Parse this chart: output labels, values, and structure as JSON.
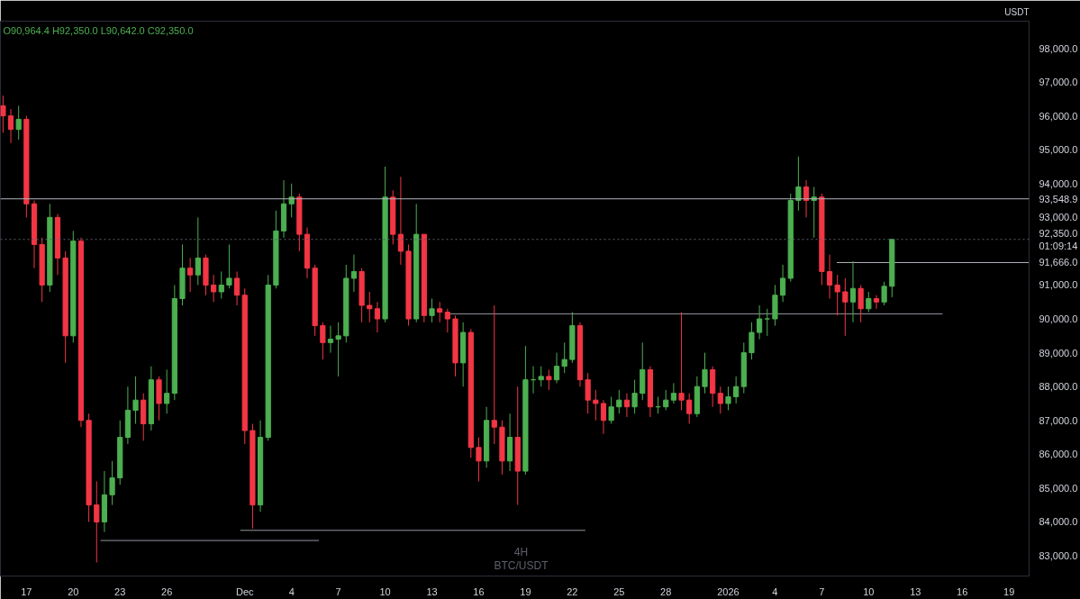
{
  "chart_data": {
    "type": "candlestick",
    "x": [
      "2025-11-15T12:00",
      "2025-11-16T00:00",
      "2025-11-16T12:00",
      "2025-11-17T00:00",
      "2025-11-17T12:00",
      "2025-11-18T00:00",
      "2025-11-18T12:00",
      "2025-11-19T00:00",
      "2025-11-19T12:00",
      "2025-11-20T00:00",
      "2025-11-20T12:00",
      "2025-11-21T00:00",
      "2025-11-21T12:00",
      "2025-11-22T00:00",
      "2025-11-22T12:00",
      "2025-11-23T00:00",
      "2025-11-23T12:00",
      "2025-11-24T00:00",
      "2025-11-24T12:00",
      "2025-11-25T00:00",
      "2025-11-25T12:00",
      "2025-11-26T00:00",
      "2025-11-26T12:00",
      "2025-11-27T00:00",
      "2025-11-27T12:00",
      "2025-11-28T00:00",
      "2025-11-28T12:00",
      "2025-11-29T00:00",
      "2025-11-29T12:00",
      "2025-11-30T00:00",
      "2025-11-30T12:00",
      "2025-12-01T00:00",
      "2025-12-01T12:00",
      "2025-12-02T00:00",
      "2025-12-02T12:00",
      "2025-12-03T00:00",
      "2025-12-03T12:00",
      "2025-12-04T00:00",
      "2025-12-04T12:00",
      "2025-12-05T00:00",
      "2025-12-05T12:00",
      "2025-12-06T00:00",
      "2025-12-06T12:00",
      "2025-12-07T00:00",
      "2025-12-07T12:00",
      "2025-12-08T00:00",
      "2025-12-08T12:00",
      "2025-12-09T00:00",
      "2025-12-09T12:00",
      "2025-12-10T00:00",
      "2025-12-10T12:00",
      "2025-12-11T00:00",
      "2025-12-11T12:00",
      "2025-12-12T00:00",
      "2025-12-12T12:00",
      "2025-12-13T00:00",
      "2025-12-13T12:00",
      "2025-12-14T00:00",
      "2025-12-14T12:00",
      "2025-12-15T00:00",
      "2025-12-15T12:00",
      "2025-12-16T00:00",
      "2025-12-16T12:00",
      "2025-12-17T00:00",
      "2025-12-17T12:00",
      "2025-12-18T00:00",
      "2025-12-18T12:00",
      "2025-12-19T00:00",
      "2025-12-19T12:00",
      "2025-12-20T00:00",
      "2025-12-20T12:00",
      "2025-12-21T00:00",
      "2025-12-21T12:00",
      "2025-12-22T00:00",
      "2025-12-22T12:00",
      "2025-12-23T00:00",
      "2025-12-23T12:00",
      "2025-12-24T00:00",
      "2025-12-24T12:00",
      "2025-12-25T00:00",
      "2025-12-25T12:00",
      "2025-12-26T00:00",
      "2025-12-26T12:00",
      "2025-12-27T00:00",
      "2025-12-27T12:00",
      "2025-12-28T00:00",
      "2025-12-28T12:00",
      "2025-12-29T00:00",
      "2025-12-29T12:00",
      "2025-12-30T00:00",
      "2025-12-30T12:00",
      "2025-12-31T00:00",
      "2025-12-31T12:00",
      "2026-01-01T00:00",
      "2026-01-01T12:00",
      "2026-01-02T00:00",
      "2026-01-02T12:00",
      "2026-01-03T00:00",
      "2026-01-03T12:00",
      "2026-01-04T00:00",
      "2026-01-04T12:00",
      "2026-01-05T00:00",
      "2026-01-05T12:00",
      "2026-01-06T00:00",
      "2026-01-06T12:00",
      "2026-01-07T00:00",
      "2026-01-07T12:00",
      "2026-01-08T00:00",
      "2026-01-08T12:00",
      "2026-01-09T00:00",
      "2026-01-09T12:00",
      "2026-01-10T00:00",
      "2026-01-10T12:00",
      "2026-01-11T00:00",
      "2026-01-11T12:00"
    ],
    "ohlc": [
      [
        96300,
        96600,
        95500,
        96000
      ],
      [
        96000,
        96200,
        95200,
        95600
      ],
      [
        95600,
        96300,
        95300,
        95900
      ],
      [
        95900,
        96000,
        93000,
        93400
      ],
      [
        93400,
        93500,
        91500,
        92200
      ],
      [
        92200,
        92400,
        90500,
        91000
      ],
      [
        91000,
        93400,
        90800,
        93000
      ],
      [
        93000,
        93100,
        91300,
        91800
      ],
      [
        91800,
        92000,
        88700,
        89500
      ],
      [
        89500,
        92600,
        89300,
        92300
      ],
      [
        92300,
        92400,
        86800,
        87000
      ],
      [
        87000,
        87200,
        84000,
        84500
      ],
      [
        84500,
        85200,
        82800,
        84000
      ],
      [
        84000,
        85500,
        83700,
        84800
      ],
      [
        84800,
        85800,
        84500,
        85300
      ],
      [
        85300,
        87000,
        85100,
        86500
      ],
      [
        86500,
        88000,
        86300,
        87300
      ],
      [
        87300,
        88300,
        86900,
        87600
      ],
      [
        87600,
        87800,
        86400,
        86900
      ],
      [
        86900,
        88600,
        86700,
        88200
      ],
      [
        88200,
        88300,
        87000,
        87500
      ],
      [
        87500,
        88500,
        87200,
        87800
      ],
      [
        87800,
        91000,
        87600,
        90600
      ],
      [
        90600,
        92200,
        90400,
        91500
      ],
      [
        91500,
        91800,
        90800,
        91300
      ],
      [
        91300,
        93000,
        91000,
        91800
      ],
      [
        91800,
        91900,
        90700,
        91000
      ],
      [
        91000,
        91300,
        90500,
        90800
      ],
      [
        90800,
        91400,
        90600,
        91000
      ],
      [
        91000,
        92200,
        90900,
        91200
      ],
      [
        91200,
        91400,
        90400,
        90700
      ],
      [
        90700,
        90900,
        86300,
        86700
      ],
      [
        86700,
        86900,
        83800,
        84500
      ],
      [
        84500,
        87000,
        84300,
        86500
      ],
      [
        86500,
        91300,
        86400,
        91000
      ],
      [
        91000,
        93200,
        90900,
        92600
      ],
      [
        92600,
        94100,
        92400,
        93400
      ],
      [
        93400,
        94000,
        93000,
        93600
      ],
      [
        93600,
        93700,
        92000,
        92500
      ],
      [
        92500,
        92700,
        91200,
        91500
      ],
      [
        91500,
        91600,
        89500,
        89800
      ],
      [
        89800,
        89900,
        88800,
        89300
      ],
      [
        89300,
        89800,
        89000,
        89400
      ],
      [
        89400,
        89900,
        88300,
        89500
      ],
      [
        89500,
        91600,
        89300,
        91200
      ],
      [
        91200,
        91900,
        90800,
        91400
      ],
      [
        91400,
        91500,
        89900,
        90400
      ],
      [
        90400,
        90800,
        89900,
        90300
      ],
      [
        90300,
        90500,
        89600,
        90000
      ],
      [
        90000,
        94500,
        89900,
        93600
      ],
      [
        93600,
        93800,
        92200,
        92500
      ],
      [
        92500,
        94200,
        91600,
        92000
      ],
      [
        92000,
        92200,
        89800,
        90000
      ],
      [
        90000,
        93400,
        89900,
        92500
      ],
      [
        92500,
        92500,
        89900,
        90100
      ],
      [
        90100,
        90600,
        89900,
        90300
      ],
      [
        90300,
        90500,
        89900,
        90200
      ],
      [
        90200,
        90300,
        89600,
        90000
      ],
      [
        90000,
        90100,
        88300,
        88700
      ],
      [
        88700,
        89900,
        88000,
        89600
      ],
      [
        89600,
        89700,
        85900,
        86200
      ],
      [
        86200,
        86500,
        85200,
        85800
      ],
      [
        85800,
        87400,
        85600,
        87000
      ],
      [
        87000,
        90400,
        86300,
        86800
      ],
      [
        86800,
        87000,
        85400,
        85800
      ],
      [
        85800,
        87200,
        85500,
        86500
      ],
      [
        86500,
        88000,
        84500,
        85500
      ],
      [
        85500,
        89200,
        85400,
        88200
      ],
      [
        88200,
        88600,
        87800,
        88200
      ],
      [
        88200,
        88600,
        88000,
        88300
      ],
      [
        88300,
        88500,
        87900,
        88200
      ],
      [
        88200,
        89000,
        88100,
        88600
      ],
      [
        88600,
        89300,
        88400,
        88800
      ],
      [
        88800,
        90200,
        88700,
        89800
      ],
      [
        89800,
        89900,
        88000,
        88200
      ],
      [
        88200,
        88400,
        87200,
        87600
      ],
      [
        87600,
        87900,
        87000,
        87500
      ],
      [
        87500,
        87600,
        86600,
        87000
      ],
      [
        87000,
        87700,
        86900,
        87400
      ],
      [
        87400,
        87900,
        87200,
        87600
      ],
      [
        87600,
        87800,
        87100,
        87400
      ],
      [
        87400,
        88200,
        87200,
        87800
      ],
      [
        87800,
        89300,
        87600,
        88500
      ],
      [
        88500,
        88600,
        87100,
        87400
      ],
      [
        87400,
        87700,
        87200,
        87400
      ],
      [
        87400,
        87900,
        87300,
        87600
      ],
      [
        87600,
        88100,
        87500,
        87800
      ],
      [
        87800,
        90200,
        87300,
        87600
      ],
      [
        87600,
        87800,
        86900,
        87200
      ],
      [
        87200,
        88300,
        87100,
        88000
      ],
      [
        88000,
        89000,
        87800,
        88500
      ],
      [
        88500,
        88600,
        87400,
        87800
      ],
      [
        87800,
        88000,
        87200,
        87500
      ],
      [
        87500,
        88000,
        87300,
        87700
      ],
      [
        87700,
        88300,
        87500,
        88000
      ],
      [
        88000,
        89300,
        87800,
        89000
      ],
      [
        89000,
        89900,
        88800,
        89600
      ],
      [
        89600,
        90400,
        89400,
        90000
      ],
      [
        90000,
        90300,
        89500,
        90000
      ],
      [
        90000,
        91000,
        89800,
        90700
      ],
      [
        90700,
        91600,
        90500,
        91200
      ],
      [
        91200,
        93700,
        91100,
        93500
      ],
      [
        93500,
        94800,
        93200,
        93900
      ],
      [
        93900,
        94100,
        93000,
        93500
      ],
      [
        93500,
        93900,
        92400,
        93600
      ],
      [
        93600,
        93700,
        91000,
        91400
      ],
      [
        91400,
        91900,
        90600,
        91000
      ],
      [
        91000,
        91300,
        90100,
        90800
      ],
      [
        90800,
        91200,
        89500,
        90500
      ],
      [
        90500,
        91700,
        89900,
        90900
      ],
      [
        90900,
        91000,
        89900,
        90300
      ],
      [
        90300,
        90800,
        90200,
        90600
      ],
      [
        90600,
        90700,
        90300,
        90500
      ],
      [
        90500,
        91100,
        90400,
        90964.4
      ],
      [
        90964.4,
        92350,
        90642,
        92350
      ]
    ],
    "series": [
      {
        "type": "line",
        "color": "#9598a1",
        "x": [
          "2025-11-21T18:00",
          "2025-12-05T18:00"
        ],
        "values": [
          83450,
          83450
        ]
      },
      {
        "type": "line",
        "color": "#9598a1",
        "x": [
          "2025-11-30T17:00",
          "2025-12-22T20:00"
        ],
        "values": [
          83750,
          83750
        ]
      },
      {
        "type": "line",
        "color": "#9598a1",
        "x": [
          "2025-12-14T02:00",
          "2026-01-14T18:00"
        ],
        "values": [
          90150,
          90150
        ]
      },
      {
        "type": "line",
        "color": "#b2b5be",
        "x": [
          "2026-01-07T23:00",
          "2026-01-20T07:00"
        ],
        "values": [
          91666,
          91666
        ]
      }
    ],
    "ref_lines": [
      {
        "axis": "y",
        "value": 93548.9,
        "color": "#b2b5be",
        "line_style": "solid"
      },
      {
        "axis": "y",
        "value": 92350,
        "color": "#5d606b",
        "line_style": "dotted"
      }
    ],
    "annotations": [
      "O90,964.4 H92,350.0 L90,642.0 C92,350.0",
      "4H",
      "BTC/USDT",
      "USDT"
    ],
    "xlim": [
      "2025-11-15T08:00",
      "2026-01-20T07:00"
    ],
    "xticks": [
      {
        "value": "2025-11-17",
        "label": "17"
      },
      {
        "value": "2025-11-20",
        "label": "20"
      },
      {
        "value": "2025-11-23",
        "label": "23"
      },
      {
        "value": "2025-11-26",
        "label": "26"
      },
      {
        "value": "2025-12-01",
        "label": "Dec"
      },
      {
        "value": "2025-12-04",
        "label": "4"
      },
      {
        "value": "2025-12-07",
        "label": "7"
      },
      {
        "value": "2025-12-10",
        "label": "10"
      },
      {
        "value": "2025-12-13",
        "label": "13"
      },
      {
        "value": "2025-12-16",
        "label": "16"
      },
      {
        "value": "2025-12-19",
        "label": "19"
      },
      {
        "value": "2025-12-22",
        "label": "22"
      },
      {
        "value": "2025-12-25",
        "label": "25"
      },
      {
        "value": "2025-12-28",
        "label": "28"
      },
      {
        "value": "2026-01-01",
        "label": "2026"
      },
      {
        "value": "2026-01-04",
        "label": "4"
      },
      {
        "value": "2026-01-07",
        "label": "7"
      },
      {
        "value": "2026-01-10",
        "label": "10"
      },
      {
        "value": "2026-01-13",
        "label": "13"
      },
      {
        "value": "2026-01-16",
        "label": "16"
      },
      {
        "value": "2026-01-19",
        "label": "19"
      }
    ],
    "ylim": [
      82400,
      98800
    ],
    "yticks": [
      {
        "value": 83000,
        "label": "83,000.0"
      },
      {
        "value": 84000,
        "label": "84,000.0"
      },
      {
        "value": 85000,
        "label": "85,000.0"
      },
      {
        "value": 86000,
        "label": "86,000.0"
      },
      {
        "value": 87000,
        "label": "87,000.0"
      },
      {
        "value": 88000,
        "label": "88,000.0"
      },
      {
        "value": 89000,
        "label": "89,000.0"
      },
      {
        "value": 90000,
        "label": "90,000.0"
      },
      {
        "value": 91000,
        "label": "91,000.0"
      },
      {
        "value": 91666,
        "label": "91,666.0"
      },
      {
        "value": 92350,
        "label": "92,350.0\n01:09:14"
      },
      {
        "value": 93000,
        "label": "93,000.0"
      },
      {
        "value": 93548.9,
        "label": "93,548.9"
      },
      {
        "value": 94000,
        "label": "94,000.0"
      },
      {
        "value": 95000,
        "label": "95,000.0"
      },
      {
        "value": 96000,
        "label": "96,000.0"
      },
      {
        "value": 97000,
        "label": "97,000.0"
      },
      {
        "value": 98000,
        "label": "98,000.0"
      }
    ],
    "grid": false
  }
}
